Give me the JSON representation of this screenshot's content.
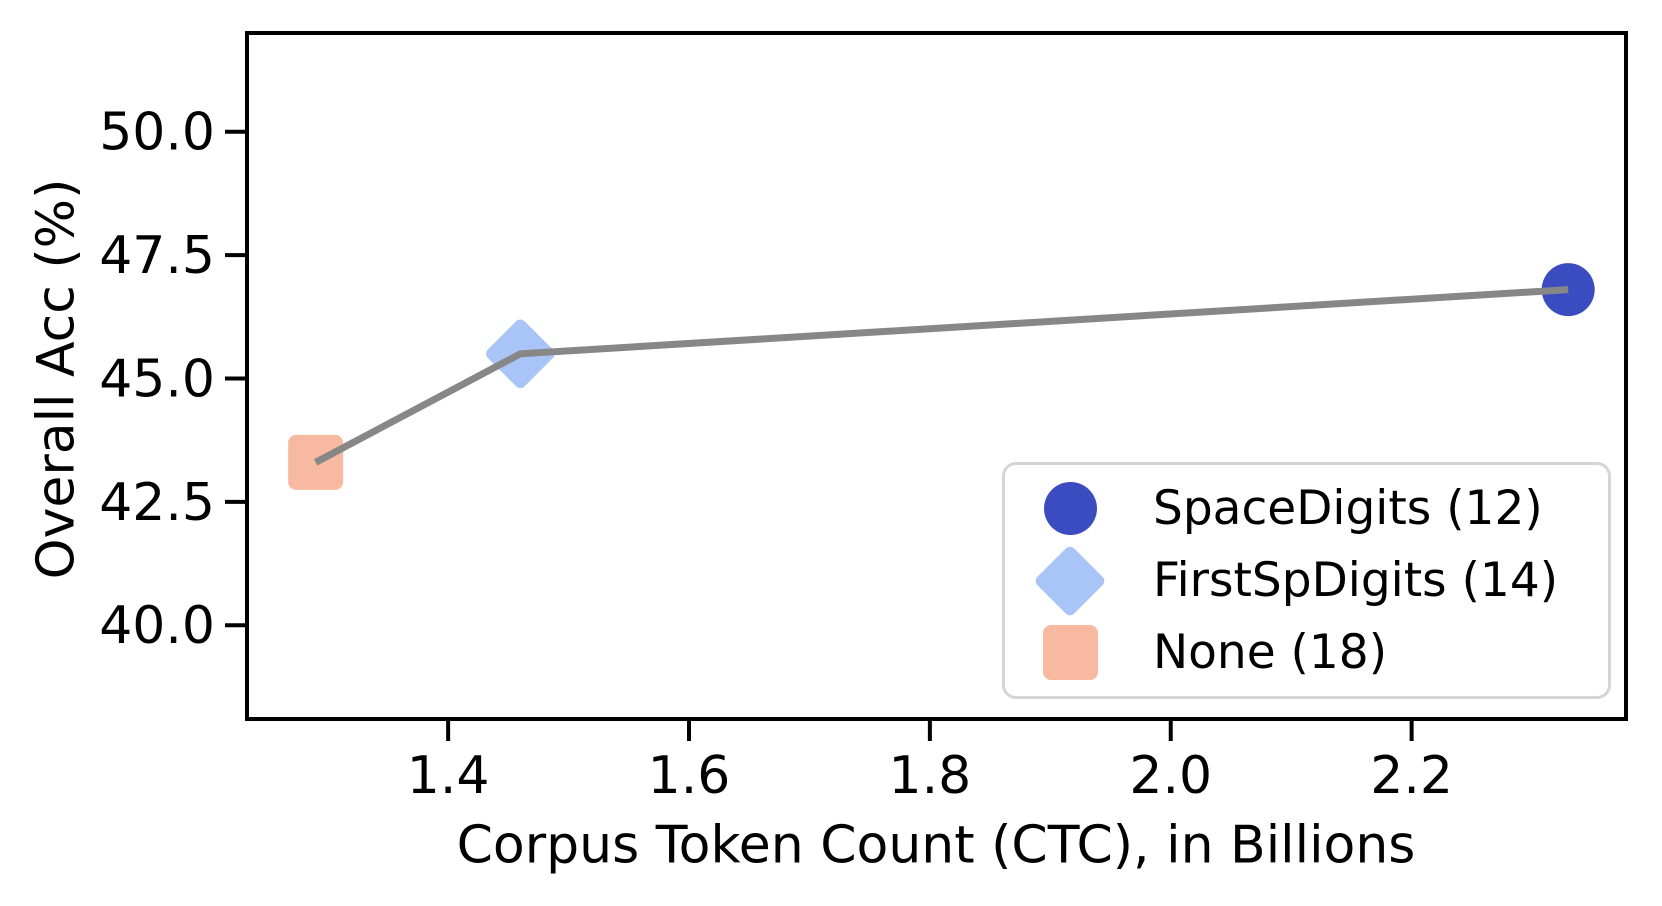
{
  "chart_data": {
    "type": "scatter",
    "title": "",
    "xlabel": "Corpus Token Count (CTC), in Billions",
    "ylabel": "Overall Acc (%)",
    "xlim": [
      1.233,
      2.378
    ],
    "ylim": [
      38.1,
      52.0
    ],
    "x_ticks": [
      1.4,
      1.6,
      1.8,
      2.0,
      2.2
    ],
    "x_tick_labels": [
      "1.4",
      "1.6",
      "1.8",
      "2.0",
      "2.2"
    ],
    "y_ticks": [
      50.0,
      47.5,
      45.0,
      42.5,
      40.0
    ],
    "y_tick_labels": [
      "50.0",
      "47.5",
      "45.0",
      "42.5",
      "40.0"
    ],
    "grid": false,
    "line": {
      "color": "#878787",
      "width": 7
    },
    "points": [
      {
        "label": "None (18)",
        "x": 1.29,
        "y": 43.3,
        "marker": "square",
        "color": "#f7b9a0"
      },
      {
        "label": "FirstSpDigits (14)",
        "x": 1.46,
        "y": 45.5,
        "marker": "diamond",
        "color": "#a9c5f8"
      },
      {
        "label": "SpaceDigits (12)",
        "x": 2.33,
        "y": 46.8,
        "marker": "circle",
        "color": "#3b4cc0"
      }
    ],
    "legend": {
      "position": "lower right",
      "entries": [
        {
          "label": "SpaceDigits (12)",
          "marker": "circle",
          "color": "#3b4cc0"
        },
        {
          "label": "FirstSpDigits (14)",
          "marker": "diamond",
          "color": "#a9c5f8"
        },
        {
          "label": "None (18)",
          "marker": "square",
          "color": "#f7b9a0"
        }
      ]
    },
    "colors": {
      "spine": "#000000",
      "tick_label": "#000000",
      "legend_border": "#d5d5d5",
      "background": "#ffffff"
    }
  }
}
